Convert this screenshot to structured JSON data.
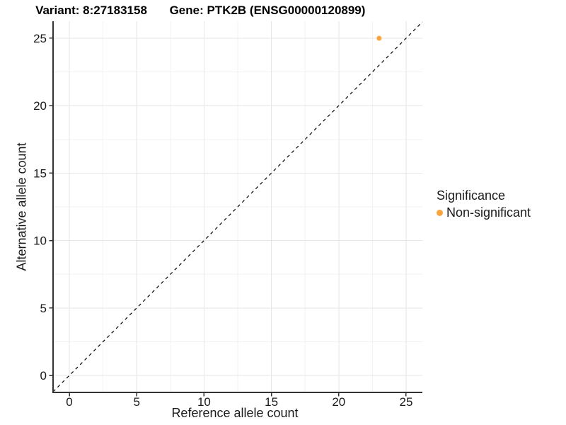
{
  "chart_data": {
    "type": "scatter",
    "titles": {
      "left": "Variant: 8:27183158",
      "right": "Gene: PTK2B (ENSG00000120899)"
    },
    "xlabel": "Reference allele count",
    "ylabel": "Alternative allele count",
    "xlim": [
      -1.21,
      26.21
    ],
    "ylim": [
      -1.26,
      26.26
    ],
    "x_ticks": [
      0,
      5,
      10,
      15,
      20,
      25
    ],
    "y_ticks": [
      0,
      5,
      10,
      15,
      20,
      25
    ],
    "x_minor_ticks": [
      2.5,
      7.5,
      12.5,
      17.5,
      22.5
    ],
    "y_minor_ticks": [
      2.5,
      7.5,
      12.5,
      17.5,
      22.5
    ],
    "grid": "major+minor",
    "identity_line": {
      "type": "y=x",
      "style": "dashed",
      "color": "#000000"
    },
    "series": [
      {
        "name": "Non-significant",
        "color": "#FAA53C",
        "points": [
          {
            "x": 23,
            "y": 25
          }
        ]
      }
    ],
    "legend": {
      "title": "Significance",
      "position": "right",
      "items": [
        {
          "label": "Non-significant",
          "color": "#FAA53C",
          "marker": "circle"
        }
      ]
    }
  }
}
